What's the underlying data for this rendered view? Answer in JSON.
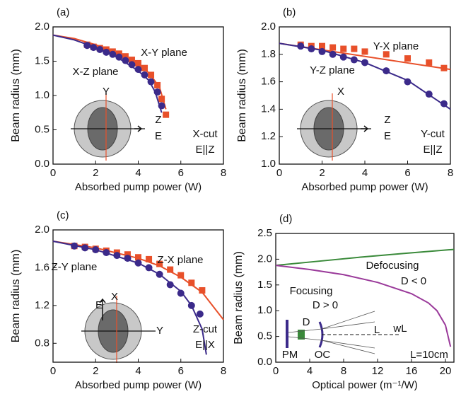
{
  "chart_data": [
    {
      "type": "scatter",
      "label": "(a)",
      "x_label": "Absorbed pump power (W)",
      "y_label": "Beam radius (mm)",
      "xlim": [
        0,
        8
      ],
      "xticks": [
        0,
        2,
        4,
        6,
        8
      ],
      "ylim": [
        0,
        2
      ],
      "yticks": [
        {
          "value": 0,
          "label": "0.0"
        },
        0.5,
        {
          "value": 1,
          "label": "1.0"
        },
        1.5,
        {
          "value": 2,
          "label": "2.0"
        }
      ],
      "series": [
        {
          "name": "X-Y plane",
          "color": "#e8502a",
          "marker": "square",
          "x": [
            1.6,
            1.9,
            2.2,
            2.5,
            2.8,
            3.1,
            3.4,
            3.7,
            4.0,
            4.3,
            4.6,
            4.9,
            5.1,
            5.3
          ],
          "values": [
            1.74,
            1.71,
            1.69,
            1.67,
            1.64,
            1.61,
            1.57,
            1.52,
            1.47,
            1.4,
            1.3,
            1.15,
            0.95,
            0.72
          ],
          "fit_x": [
            0,
            1,
            2,
            3,
            4,
            4.5,
            5,
            5.3
          ],
          "fit_values": [
            1.88,
            1.83,
            1.74,
            1.62,
            1.45,
            1.33,
            1.12,
            0.8
          ]
        },
        {
          "name": "X-Z plane",
          "color": "#3b2a8a",
          "marker": "circle",
          "x": [
            1.6,
            1.9,
            2.2,
            2.5,
            2.8,
            3.1,
            3.4,
            3.7,
            4.0,
            4.3,
            4.6,
            4.9,
            5.1
          ],
          "values": [
            1.73,
            1.7,
            1.67,
            1.63,
            1.6,
            1.56,
            1.51,
            1.45,
            1.38,
            1.3,
            1.2,
            1.05,
            0.85
          ],
          "fit_x": [
            0,
            1,
            2,
            3,
            4,
            4.5,
            4.8,
            5.1
          ],
          "fit_values": [
            1.88,
            1.81,
            1.7,
            1.56,
            1.36,
            1.22,
            1.05,
            0.75
          ]
        }
      ],
      "annotations": [
        {
          "text": "Y",
          "color": "#e8502a"
        },
        {
          "text": "Z",
          "color": "#111"
        },
        {
          "text": "E",
          "color": "#111"
        },
        {
          "text": "X-cut",
          "color": "#111"
        },
        {
          "text": "E||Z",
          "color": "#111"
        }
      ]
    },
    {
      "type": "scatter",
      "label": "(b)",
      "x_label": "Absorbed pump power (W)",
      "y_label": "Beam radius (mm)",
      "xlim": [
        0,
        8
      ],
      "xticks": [
        0,
        2,
        4,
        6,
        8
      ],
      "ylim": [
        1,
        2
      ],
      "yticks": [
        {
          "value": 1,
          "label": "1.0"
        },
        1.2,
        1.4,
        1.6,
        1.8,
        {
          "value": 2,
          "label": "2.0"
        }
      ],
      "series": [
        {
          "name": "Y-X plane",
          "color": "#e8502a",
          "marker": "square",
          "x": [
            1,
            1.5,
            2,
            2.5,
            3,
            3.5,
            4,
            5,
            6,
            7,
            7.7
          ],
          "values": [
            1.87,
            1.86,
            1.86,
            1.85,
            1.84,
            1.84,
            1.82,
            1.8,
            1.77,
            1.74,
            1.7
          ],
          "fit_x": [
            0,
            8
          ],
          "fit_values": [
            1.88,
            1.69
          ]
        },
        {
          "name": "Y-Z plane",
          "color": "#3b2a8a",
          "marker": "circle",
          "x": [
            1,
            1.5,
            2,
            2.5,
            3,
            3.5,
            4,
            5,
            6,
            7,
            7.7
          ],
          "values": [
            1.86,
            1.84,
            1.82,
            1.8,
            1.78,
            1.76,
            1.74,
            1.68,
            1.6,
            1.51,
            1.44
          ],
          "fit_x": [
            0,
            2,
            4,
            6,
            8
          ],
          "fit_values": [
            1.88,
            1.83,
            1.74,
            1.61,
            1.4
          ]
        }
      ],
      "annotations": [
        {
          "text": "X",
          "color": "#e8502a"
        },
        {
          "text": "Z",
          "color": "#111"
        },
        {
          "text": "E",
          "color": "#111"
        },
        {
          "text": "Y-cut",
          "color": "#111"
        },
        {
          "text": "E||Z",
          "color": "#111"
        }
      ]
    },
    {
      "type": "scatter",
      "label": "(c)",
      "x_label": "Absorbed pump power (W)",
      "y_label": "Beam radius (mm)",
      "xlim": [
        0,
        8
      ],
      "xticks": [
        0,
        2,
        4,
        6,
        8
      ],
      "ylim": [
        0.6,
        2
      ],
      "yticks": [
        0.8,
        1.2,
        1.6,
        {
          "value": 2,
          "label": "2.0"
        }
      ],
      "series": [
        {
          "name": "Z-X plane",
          "color": "#e8502a",
          "marker": "square",
          "x": [
            1,
            1.5,
            2,
            2.5,
            3,
            3.5,
            4,
            4.5,
            5,
            5.5,
            6,
            6.5,
            7
          ],
          "values": [
            1.83,
            1.82,
            1.8,
            1.78,
            1.76,
            1.74,
            1.71,
            1.69,
            1.64,
            1.58,
            1.52,
            1.44,
            1.36
          ],
          "fit_x": [
            0,
            2,
            4,
            5,
            6,
            7,
            8
          ],
          "fit_values": [
            1.88,
            1.81,
            1.7,
            1.62,
            1.5,
            1.34,
            1.05
          ]
        },
        {
          "name": "Z-Y plane",
          "color": "#3b2a8a",
          "marker": "circle",
          "x": [
            1,
            1.5,
            2,
            2.5,
            3,
            3.5,
            4,
            4.5,
            5,
            5.5,
            6,
            6.5,
            6.9
          ],
          "values": [
            1.83,
            1.81,
            1.79,
            1.76,
            1.73,
            1.7,
            1.65,
            1.6,
            1.53,
            1.42,
            1.33,
            1.2,
            1.11
          ],
          "fit_x": [
            0,
            2,
            4,
            5,
            6,
            6.5,
            7,
            7.2
          ],
          "fit_values": [
            1.88,
            1.79,
            1.65,
            1.53,
            1.35,
            1.2,
            0.95,
            0.68
          ]
        }
      ],
      "annotations": [
        {
          "text": "X",
          "color": "#e8502a"
        },
        {
          "text": "E",
          "color": "#111"
        },
        {
          "text": "Y",
          "color": "#111"
        },
        {
          "text": "Z-cut",
          "color": "#111"
        },
        {
          "text": "E||X",
          "color": "#111"
        }
      ]
    },
    {
      "type": "line",
      "label": "(d)",
      "x_label": "Optical power (m⁻¹/W)",
      "y_label": "Beam radius (mm)",
      "xlim": [
        0,
        21
      ],
      "xticks": [
        0,
        4,
        8,
        12,
        16,
        20
      ],
      "ylim": [
        0,
        2.5
      ],
      "yticks": [
        {
          "value": 0,
          "label": "0.0"
        },
        0.5,
        {
          "value": 1,
          "label": "1.0"
        },
        1.5,
        {
          "value": 2,
          "label": "2.0"
        },
        2.5
      ],
      "series": [
        {
          "name": "Defocusing",
          "color": "#3a8a3a",
          "x": [
            0,
            5,
            10,
            15,
            21
          ],
          "values": [
            1.88,
            1.96,
            2.04,
            2.11,
            2.19
          ]
        },
        {
          "name": "Focusing",
          "color": "#9a3a9a",
          "x": [
            0,
            4,
            8,
            12,
            16,
            18,
            19,
            20,
            20.6
          ],
          "values": [
            1.88,
            1.8,
            1.7,
            1.55,
            1.33,
            1.15,
            1.0,
            0.72,
            0.3
          ]
        }
      ],
      "annotations": [
        {
          "text": "D < 0",
          "color": "#3a8a3a"
        },
        {
          "text": "D > 0",
          "color": "#9a3a9a"
        },
        {
          "text": "D",
          "color": "#111"
        },
        {
          "text": "L",
          "color": "#111"
        },
        {
          "text": "wL",
          "color": "#111"
        },
        {
          "text": "PM",
          "color": "#111"
        },
        {
          "text": "OC",
          "color": "#111"
        },
        {
          "text": "L=10cm",
          "color": "#111"
        }
      ]
    }
  ]
}
